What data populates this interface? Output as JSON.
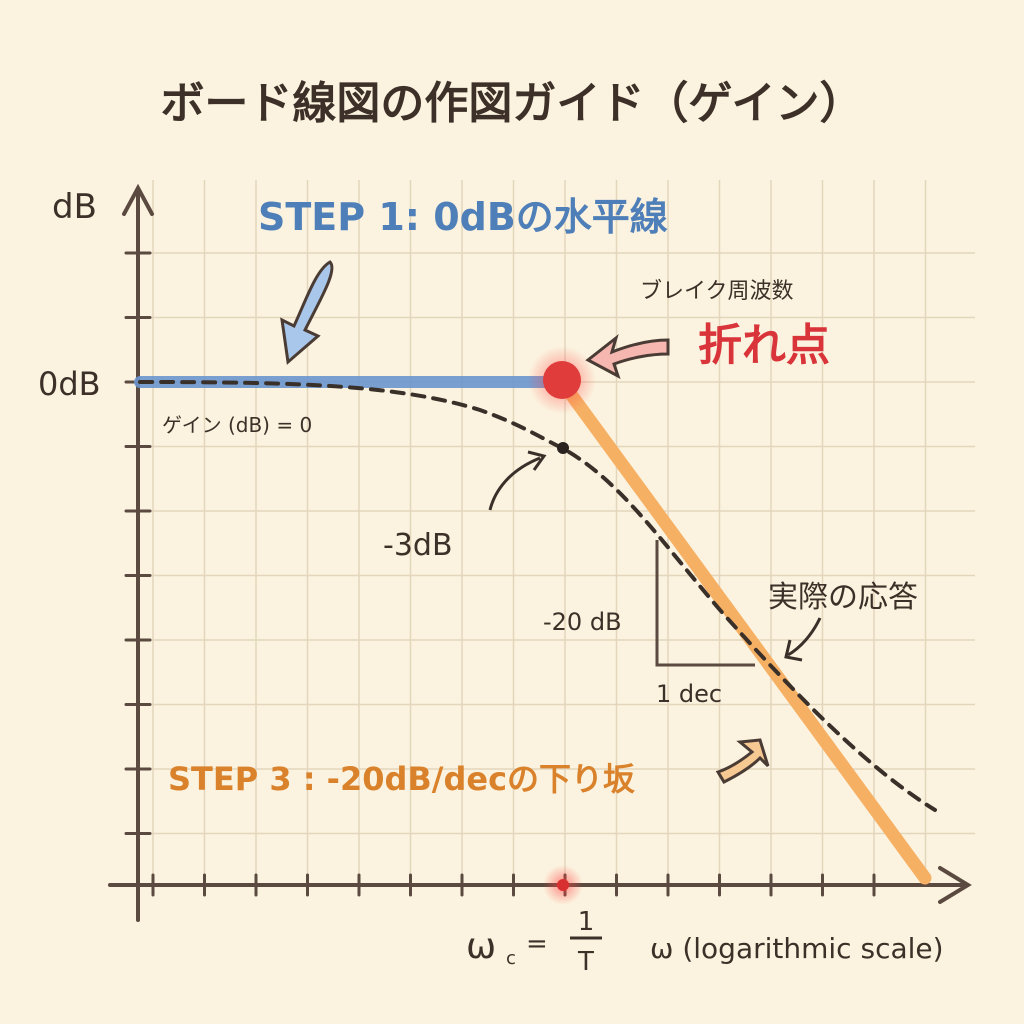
{
  "title": "ボード線図の作図ガイド（ゲイン）",
  "axes": {
    "y_label": "dB",
    "x_label": "ω (logarithmic scale)",
    "zero_db_label": "0dB",
    "corner_label": "ω",
    "corner_sub": "c",
    "corner_eq": "=",
    "corner_num": "1",
    "corner_den": "T"
  },
  "annotations": {
    "step1": "STEP 1: 0dBの水平線",
    "gain_zero": "ゲイン (dB) = 0",
    "break_sub": "ブレイク周波数",
    "break_main": "折れ点",
    "minus3db": "-3dB",
    "slope_db": "-20 dB",
    "slope_dec": "1 dec",
    "actual": "実際の応答",
    "step3": "STEP 3 : -20dB/decの下り坂"
  },
  "colors": {
    "step1": "#4f7fb8",
    "asymptote_flat": "#6b95cf",
    "asymptote_slope": "#f6b064",
    "step3": "#d9822b",
    "break_point": "#e03c3c",
    "break_text": "#d8343a",
    "actual_response": "#3a302a",
    "grid": "#e3d6bd",
    "background": "#fbf3df"
  }
}
